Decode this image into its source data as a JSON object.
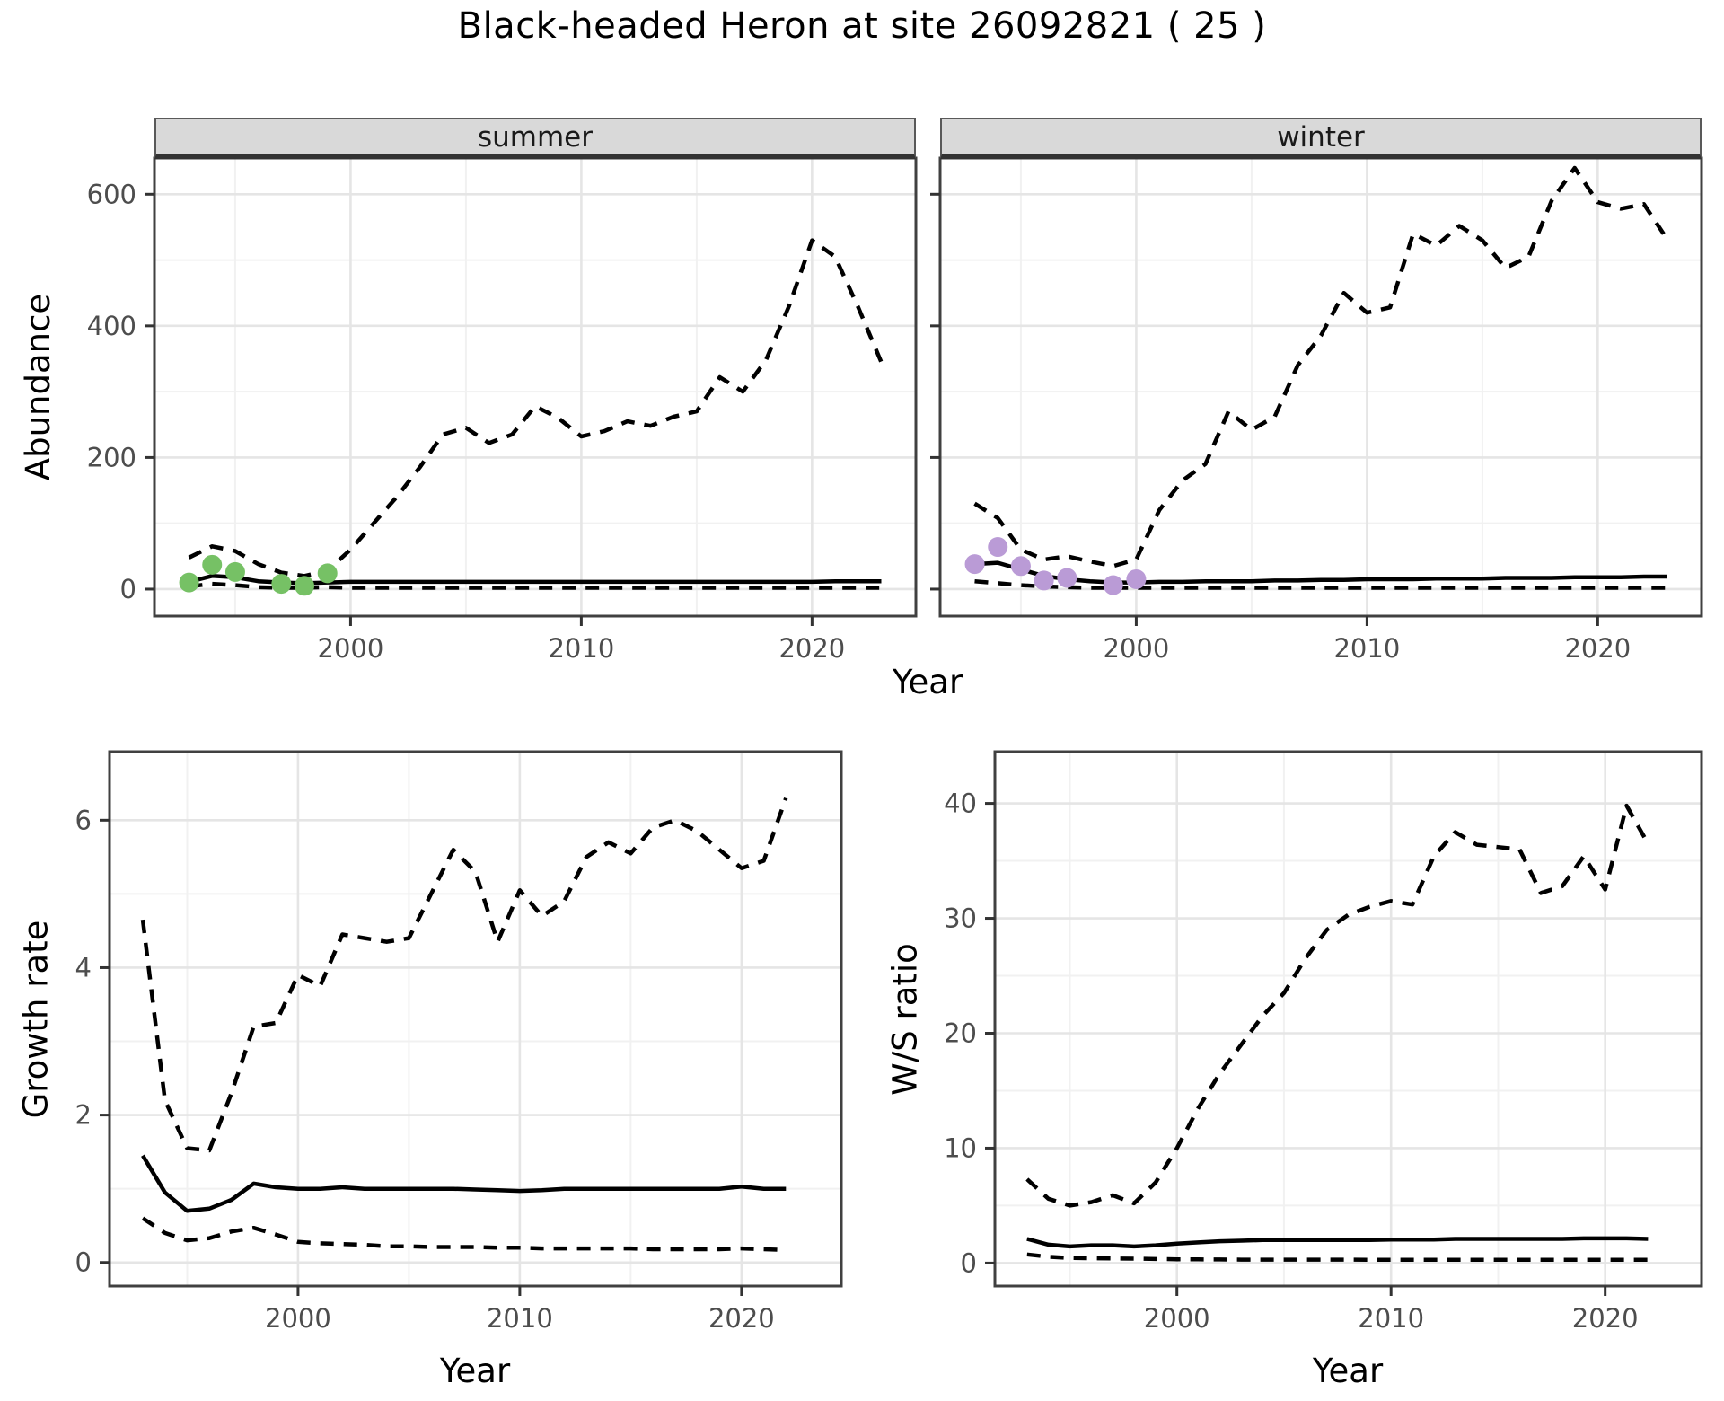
{
  "title": "Black-headed Heron at site 26092821 ( 25 )",
  "facets": {
    "summer": "summer",
    "winter": "winter"
  },
  "axis_labels": {
    "abundance": "Abundance",
    "year": "Year",
    "growth_rate": "Growth rate",
    "ws_ratio": "W/S ratio"
  },
  "colors": {
    "observed_summer": "#76C165",
    "observed_winter": "#BA9BD6",
    "line": "#000000",
    "strip_bg": "#d9d9d9",
    "grid_major": "#e5e5e5",
    "grid_minor": "#f1f1f1",
    "panel_border": "#404040",
    "tick_text": "#4d4d4d"
  },
  "chart_data": [
    {
      "id": "abundance-summer",
      "type": "line",
      "facet": "summer",
      "xlabel": "Year",
      "ylabel": "Abundance",
      "xlim": [
        1991.5,
        2024.5
      ],
      "ylim": [
        -41,
        655
      ],
      "xticks": [
        2000,
        2010,
        2020
      ],
      "yticks": [
        0,
        200,
        400,
        600
      ],
      "xminor": [
        1995,
        2005,
        2015
      ],
      "yminor": [
        100,
        300,
        500
      ],
      "show_ytick_labels": true,
      "series": [
        {
          "name": "upper_ci",
          "linetype": "dashed",
          "x": [
            1993,
            1994,
            1995,
            1996,
            1997,
            1998,
            1999,
            2000,
            2001,
            2002,
            2003,
            2004,
            2005,
            2006,
            2007,
            2008,
            2009,
            2010,
            2011,
            2012,
            2013,
            2014,
            2015,
            2016,
            2017,
            2018,
            2019,
            2020,
            2021,
            2022,
            2023
          ],
          "y": [
            48,
            65,
            58,
            38,
            25,
            20,
            28,
            60,
            100,
            140,
            185,
            235,
            245,
            222,
            235,
            278,
            260,
            232,
            240,
            255,
            248,
            262,
            270,
            322,
            300,
            348,
            430,
            530,
            505,
            428,
            345
          ]
        },
        {
          "name": "estimate",
          "linetype": "solid",
          "x": [
            1993,
            1994,
            1995,
            1996,
            1997,
            1998,
            1999,
            2000,
            2001,
            2002,
            2003,
            2004,
            2005,
            2006,
            2007,
            2008,
            2009,
            2010,
            2011,
            2012,
            2013,
            2014,
            2015,
            2016,
            2017,
            2018,
            2019,
            2020,
            2021,
            2022,
            2023
          ],
          "y": [
            11,
            20,
            18,
            12,
            10,
            9,
            10,
            11,
            11,
            11,
            11,
            11,
            11,
            11,
            11,
            11,
            11,
            11,
            11,
            11,
            11,
            11,
            11,
            11,
            11,
            11,
            11,
            11,
            12,
            12,
            12
          ]
        },
        {
          "name": "lower_ci",
          "linetype": "dashed",
          "x": [
            1993,
            1994,
            1995,
            1996,
            1997,
            1998,
            1999,
            2000,
            2001,
            2002,
            2003,
            2004,
            2005,
            2006,
            2007,
            2008,
            2009,
            2010,
            2011,
            2012,
            2013,
            2014,
            2015,
            2016,
            2017,
            2018,
            2019,
            2020,
            2021,
            2022,
            2023
          ],
          "y": [
            4,
            8,
            6,
            3,
            2,
            2,
            3,
            2,
            2,
            2,
            2,
            2,
            2,
            2,
            2,
            2,
            2,
            2,
            2,
            2,
            2,
            2,
            2,
            2,
            2,
            2,
            2,
            2,
            2,
            2,
            2
          ]
        }
      ],
      "points": {
        "name": "observed-summer",
        "color": "#76C165",
        "x": [
          1993,
          1994,
          1995,
          1997,
          1998,
          1999
        ],
        "y": [
          10,
          37,
          26,
          8,
          5,
          24
        ]
      }
    },
    {
      "id": "abundance-winter",
      "type": "line",
      "facet": "winter",
      "xlabel": "Year",
      "ylabel": "Abundance",
      "xlim": [
        1991.5,
        2024.5
      ],
      "ylim": [
        -41,
        655
      ],
      "xticks": [
        2000,
        2010,
        2020
      ],
      "yticks": [
        0,
        200,
        400,
        600
      ],
      "xminor": [
        1995,
        2005,
        2015
      ],
      "yminor": [
        100,
        300,
        500
      ],
      "show_ytick_labels": false,
      "series": [
        {
          "name": "upper_ci",
          "linetype": "dashed",
          "x": [
            1993,
            1994,
            1995,
            1996,
            1997,
            1998,
            1999,
            2000,
            2001,
            2002,
            2003,
            2004,
            2005,
            2006,
            2007,
            2008,
            2009,
            2010,
            2011,
            2012,
            2013,
            2014,
            2015,
            2016,
            2017,
            2018,
            2019,
            2020,
            2021,
            2022,
            2023
          ],
          "y": [
            130,
            108,
            60,
            45,
            50,
            42,
            35,
            45,
            120,
            165,
            190,
            270,
            242,
            262,
            340,
            385,
            450,
            420,
            428,
            540,
            522,
            552,
            530,
            488,
            505,
            590,
            640,
            588,
            578,
            585,
            532
          ]
        },
        {
          "name": "estimate",
          "linetype": "solid",
          "x": [
            1993,
            1994,
            1995,
            1996,
            1997,
            1998,
            1999,
            2000,
            2001,
            2002,
            2003,
            2004,
            2005,
            2006,
            2007,
            2008,
            2009,
            2010,
            2011,
            2012,
            2013,
            2014,
            2015,
            2016,
            2017,
            2018,
            2019,
            2020,
            2021,
            2022,
            2023
          ],
          "y": [
            38,
            40,
            30,
            20,
            15,
            12,
            10,
            10,
            11,
            11,
            12,
            12,
            12,
            13,
            13,
            14,
            14,
            15,
            15,
            15,
            16,
            16,
            16,
            17,
            17,
            17,
            18,
            18,
            18,
            19,
            19
          ]
        },
        {
          "name": "lower_ci",
          "linetype": "dashed",
          "x": [
            1993,
            1994,
            1995,
            1996,
            1997,
            1998,
            1999,
            2000,
            2001,
            2002,
            2003,
            2004,
            2005,
            2006,
            2007,
            2008,
            2009,
            2010,
            2011,
            2012,
            2013,
            2014,
            2015,
            2016,
            2017,
            2018,
            2019,
            2020,
            2021,
            2022,
            2023
          ],
          "y": [
            12,
            9,
            6,
            4,
            3,
            2,
            2,
            2,
            2,
            2,
            2,
            2,
            2,
            2,
            2,
            2,
            2,
            2,
            2,
            2,
            2,
            2,
            2,
            2,
            2,
            2,
            2,
            2,
            2,
            2,
            2
          ]
        }
      ],
      "points": {
        "name": "observed-winter",
        "color": "#BA9BD6",
        "x": [
          1993,
          1994,
          1995,
          1996,
          1997,
          1999,
          2000
        ],
        "y": [
          38,
          64,
          35,
          13,
          17,
          6,
          15
        ]
      }
    },
    {
      "id": "growth-rate",
      "type": "line",
      "facet": null,
      "xlabel": "Year",
      "ylabel": "Growth rate",
      "xlim": [
        1991.5,
        2024.5
      ],
      "ylim": [
        -0.32,
        6.93
      ],
      "xticks": [
        2000,
        2010,
        2020
      ],
      "yticks": [
        0,
        2,
        4,
        6
      ],
      "xminor": [
        1995,
        2005,
        2015
      ],
      "yminor": [
        1,
        3,
        5
      ],
      "show_ytick_labels": true,
      "series": [
        {
          "name": "upper_ci",
          "linetype": "dashed",
          "x": [
            1993,
            1994,
            1995,
            1996,
            1997,
            1998,
            1999,
            2000,
            2001,
            2002,
            2003,
            2004,
            2005,
            2006,
            2007,
            2008,
            2009,
            2010,
            2011,
            2012,
            2013,
            2014,
            2015,
            2016,
            2017,
            2018,
            2019,
            2020,
            2021,
            2022
          ],
          "y": [
            4.65,
            2.2,
            1.55,
            1.52,
            2.3,
            3.2,
            3.25,
            3.9,
            3.75,
            4.45,
            4.4,
            4.35,
            4.4,
            5.0,
            5.6,
            5.3,
            4.35,
            5.05,
            4.7,
            4.9,
            5.5,
            5.7,
            5.55,
            5.9,
            6.0,
            5.85,
            5.6,
            5.35,
            5.45,
            6.3
          ]
        },
        {
          "name": "estimate",
          "linetype": "solid",
          "x": [
            1993,
            1994,
            1995,
            1996,
            1997,
            1998,
            1999,
            2000,
            2001,
            2002,
            2003,
            2004,
            2005,
            2006,
            2007,
            2008,
            2009,
            2010,
            2011,
            2012,
            2013,
            2014,
            2015,
            2016,
            2017,
            2018,
            2019,
            2020,
            2021,
            2022
          ],
          "y": [
            1.45,
            0.95,
            0.7,
            0.73,
            0.85,
            1.07,
            1.02,
            1.0,
            1.0,
            1.02,
            1.0,
            1.0,
            1.0,
            1.0,
            1.0,
            0.99,
            0.98,
            0.97,
            0.98,
            1.0,
            1.0,
            1.0,
            1.0,
            1.0,
            1.0,
            1.0,
            1.0,
            1.03,
            1.0,
            1.0
          ]
        },
        {
          "name": "lower_ci",
          "linetype": "dashed",
          "x": [
            1993,
            1994,
            1995,
            1996,
            1997,
            1998,
            1999,
            2000,
            2001,
            2002,
            2003,
            2004,
            2005,
            2006,
            2007,
            2008,
            2009,
            2010,
            2011,
            2012,
            2013,
            2014,
            2015,
            2016,
            2017,
            2018,
            2019,
            2020,
            2021,
            2022
          ],
          "y": [
            0.6,
            0.4,
            0.3,
            0.33,
            0.42,
            0.47,
            0.38,
            0.28,
            0.26,
            0.25,
            0.24,
            0.22,
            0.22,
            0.21,
            0.21,
            0.21,
            0.2,
            0.2,
            0.19,
            0.19,
            0.19,
            0.19,
            0.19,
            0.18,
            0.18,
            0.18,
            0.18,
            0.19,
            0.18,
            0.17
          ]
        }
      ],
      "points": null
    },
    {
      "id": "ws-ratio",
      "type": "line",
      "facet": null,
      "xlabel": "Year",
      "ylabel": "W/S ratio",
      "xlim": [
        1991.5,
        2024.5
      ],
      "ylim": [
        -2,
        44.5
      ],
      "xticks": [
        2000,
        2010,
        2020
      ],
      "yticks": [
        0,
        10,
        20,
        30,
        40
      ],
      "xminor": [
        1995,
        2005,
        2015
      ],
      "yminor": [
        5,
        15,
        25,
        35
      ],
      "show_ytick_labels": true,
      "series": [
        {
          "name": "upper_ci",
          "linetype": "dashed",
          "x": [
            1993,
            1994,
            1995,
            1996,
            1997,
            1998,
            1999,
            2000,
            2001,
            2002,
            2003,
            2004,
            2005,
            2006,
            2007,
            2008,
            2009,
            2010,
            2011,
            2012,
            2013,
            2014,
            2015,
            2016,
            2017,
            2018,
            2019,
            2020,
            2021,
            2022
          ],
          "y": [
            7.3,
            5.6,
            5.0,
            5.3,
            5.9,
            5.2,
            7.0,
            10.0,
            13.5,
            16.5,
            19.0,
            21.5,
            23.5,
            26.5,
            29.0,
            30.3,
            31.0,
            31.5,
            31.2,
            35.4,
            37.5,
            36.4,
            36.2,
            36.0,
            32.2,
            32.8,
            35.4,
            32.5,
            39.8,
            36.5
          ]
        },
        {
          "name": "estimate",
          "linetype": "solid",
          "x": [
            1993,
            1994,
            1995,
            1996,
            1997,
            1998,
            1999,
            2000,
            2001,
            2002,
            2003,
            2004,
            2005,
            2006,
            2007,
            2008,
            2009,
            2010,
            2011,
            2012,
            2013,
            2014,
            2015,
            2016,
            2017,
            2018,
            2019,
            2020,
            2021,
            2022
          ],
          "y": [
            2.1,
            1.6,
            1.45,
            1.55,
            1.55,
            1.45,
            1.55,
            1.7,
            1.8,
            1.9,
            1.95,
            2.0,
            2.0,
            2.0,
            2.0,
            2.0,
            2.0,
            2.05,
            2.05,
            2.05,
            2.1,
            2.1,
            2.1,
            2.1,
            2.1,
            2.1,
            2.15,
            2.15,
            2.15,
            2.1
          ]
        },
        {
          "name": "lower_ci",
          "linetype": "dashed",
          "x": [
            1993,
            1994,
            1995,
            1996,
            1997,
            1998,
            1999,
            2000,
            2001,
            2002,
            2003,
            2004,
            2005,
            2006,
            2007,
            2008,
            2009,
            2010,
            2011,
            2012,
            2013,
            2014,
            2015,
            2016,
            2017,
            2018,
            2019,
            2020,
            2021,
            2022
          ],
          "y": [
            0.75,
            0.55,
            0.45,
            0.42,
            0.4,
            0.38,
            0.35,
            0.33,
            0.32,
            0.31,
            0.3,
            0.3,
            0.3,
            0.3,
            0.3,
            0.3,
            0.29,
            0.29,
            0.29,
            0.29,
            0.29,
            0.29,
            0.28,
            0.28,
            0.28,
            0.28,
            0.28,
            0.28,
            0.28,
            0.28
          ]
        }
      ],
      "points": null
    }
  ]
}
